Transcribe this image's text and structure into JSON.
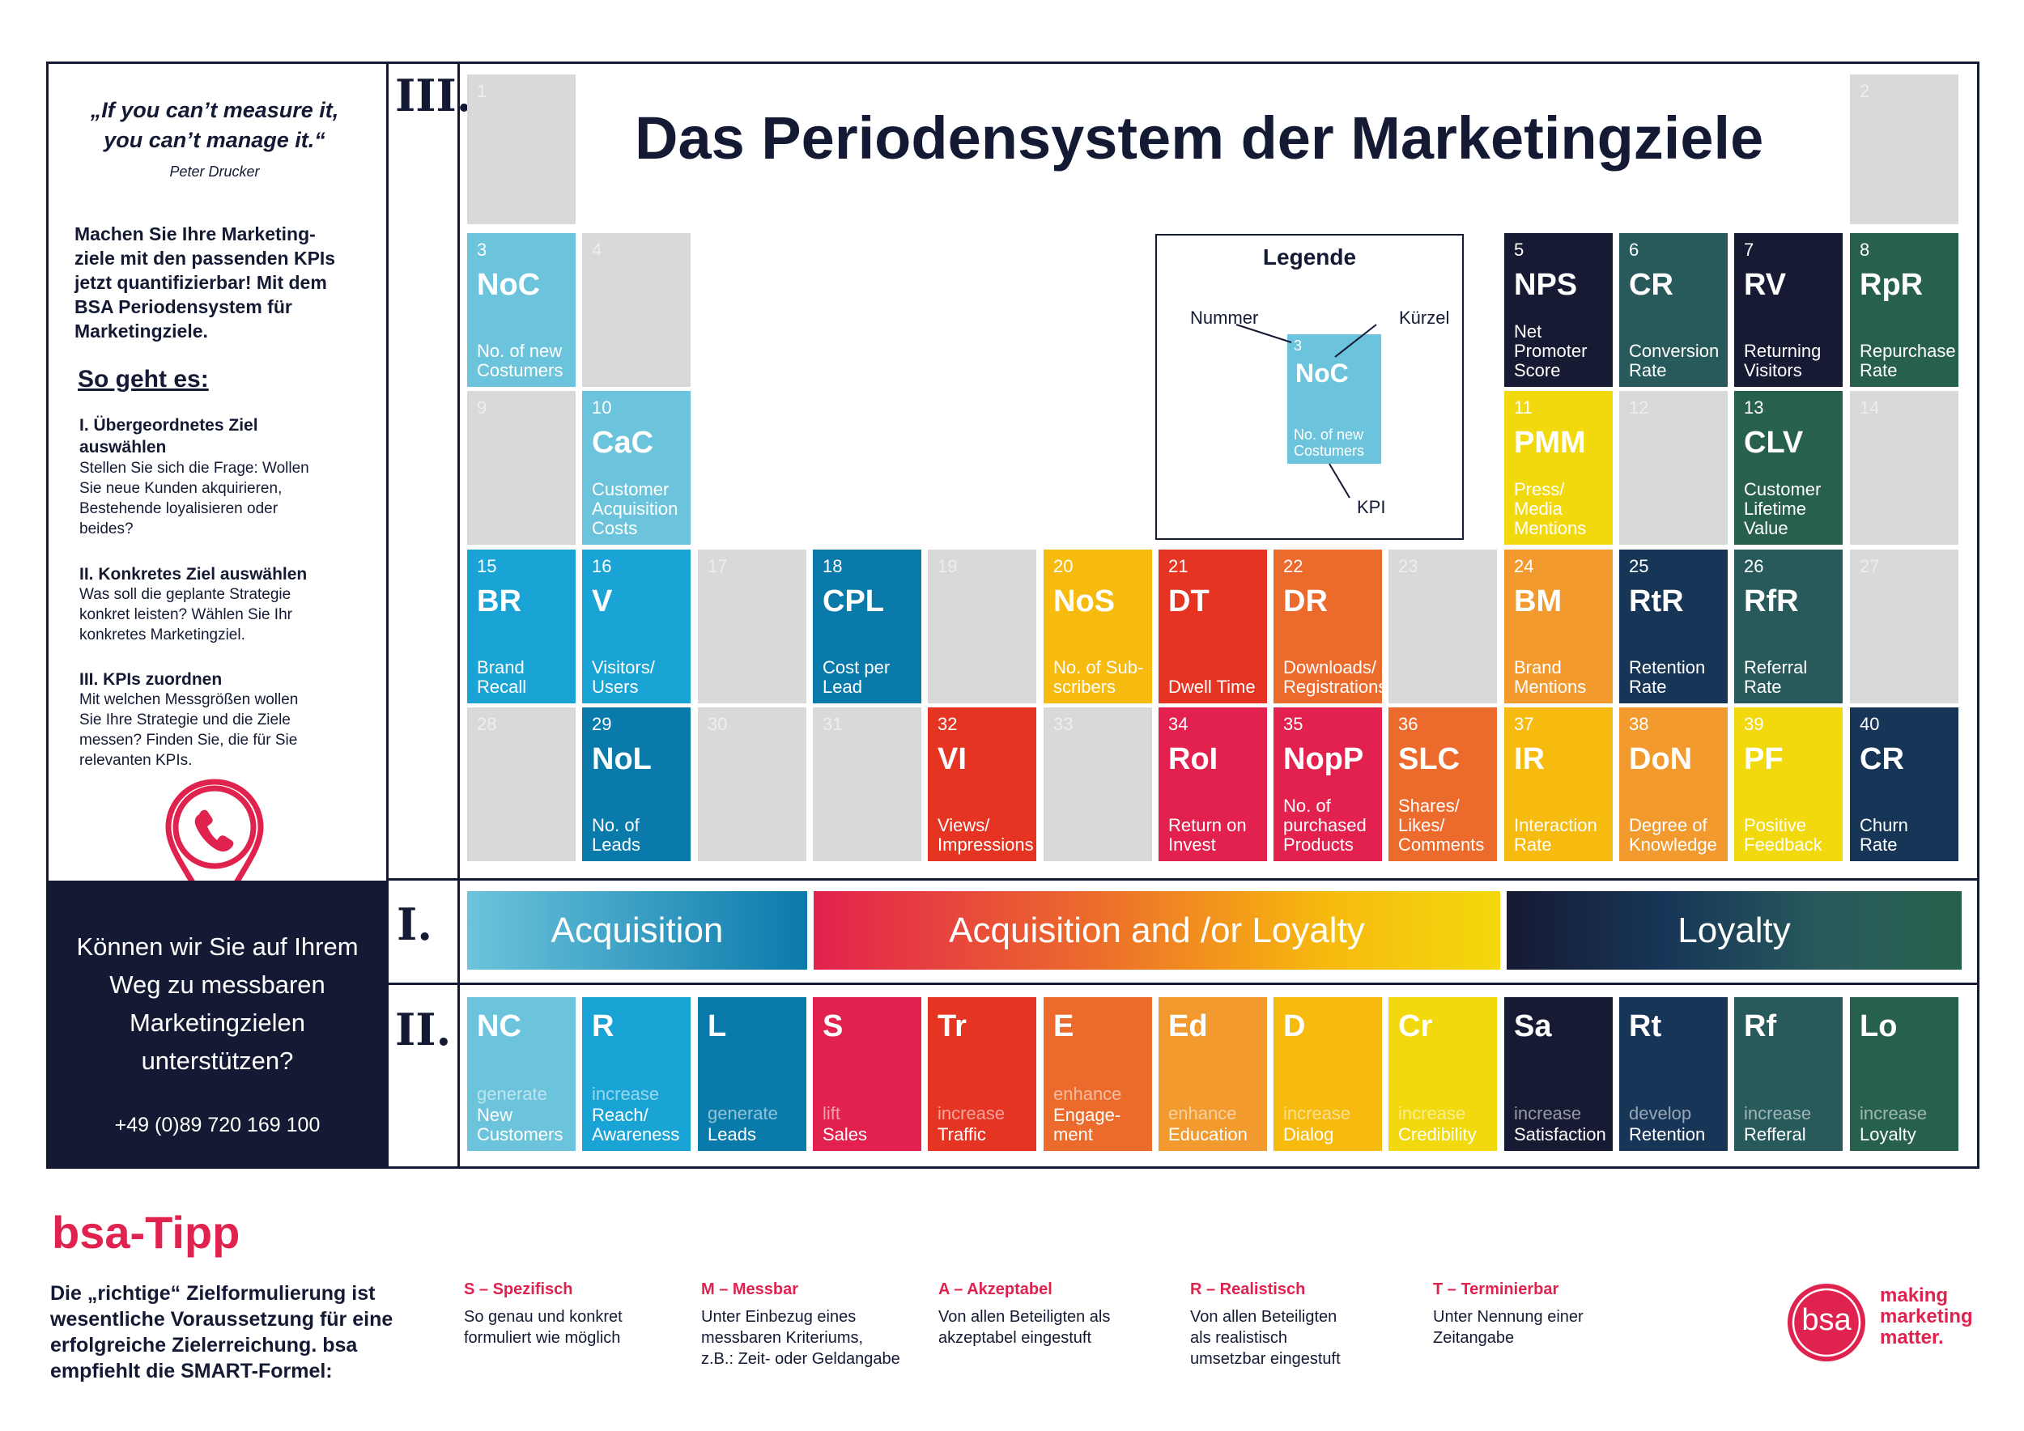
{
  "title": "Das Periodensystem der Marketingziele",
  "colors": {
    "dark": "#141a33",
    "accent": "#e0224f",
    "empty": "#d9d9da"
  },
  "sidebar": {
    "quote": "„If you can’t measure it, you can’t manage it.“",
    "quote_author": "Peter Drucker",
    "intro": "Machen Sie Ihre Marketing-ziele mit den passenden KPIs jetzt quantifizierbar! Mit dem BSA Periodensystem für Marketingziele.",
    "how_title": "So geht es:",
    "steps": [
      {
        "heading": "I. Übergeordnetes Ziel auswählen",
        "text": "Stellen Sie sich die Frage: Wollen Sie neue Kunden akquirieren, Bestehende loyalisieren oder beides?"
      },
      {
        "heading": "II. Konkretes Ziel auswählen",
        "text": "Was soll die geplante Strategie konkret leisten? Wählen Sie Ihr konkretes Marketingziel."
      },
      {
        "heading": "III. KPIs zuordnen",
        "text": "Mit welchen Messgrößen wollen Sie Ihre Strategie und die Ziele messen? Finden Sie, die für Sie relevanten KPIs."
      }
    ],
    "contact_question": "Können wir Sie auf Ihrem Weg zu messbaren Marketingzielen unterstützen?",
    "phone": "+49 (0)89 720 169 100",
    "pin_icon": "phone-location-pin-icon"
  },
  "section_labels": {
    "three": "III.",
    "one": "I.",
    "two": "II."
  },
  "legend": {
    "title": "Legende",
    "label_number": "Nummer",
    "label_symbol": "Kürzel",
    "label_kpi": "KPI",
    "sample": {
      "num": "3",
      "sym": "NoC",
      "kpi": "No. of new Costumers",
      "color": "#6cc4dc"
    }
  },
  "elements": [
    {
      "num": "1",
      "sym": "",
      "kpi": "",
      "color": "",
      "col": 0,
      "row": 0
    },
    {
      "num": "2",
      "sym": "",
      "kpi": "",
      "color": "",
      "col": 12,
      "row": 0
    },
    {
      "num": "3",
      "sym": "NoC",
      "kpi": "No. of new\nCostumers",
      "color": "#6cc4dc",
      "col": 0,
      "row": 1
    },
    {
      "num": "4",
      "sym": "",
      "kpi": "",
      "color": "",
      "col": 1,
      "row": 1
    },
    {
      "num": "5",
      "sym": "NPS",
      "kpi": "Net\nPromoter\nScore",
      "color": "#161a33",
      "col": 9,
      "row": 1
    },
    {
      "num": "6",
      "sym": "CR",
      "kpi": "Conversion\nRate",
      "color": "#285a5c",
      "col": 10,
      "row": 1
    },
    {
      "num": "7",
      "sym": "RV",
      "kpi": "Returning\nVisitors",
      "color": "#161a33",
      "col": 11,
      "row": 1
    },
    {
      "num": "8",
      "sym": "RpR",
      "kpi": "Repurchase\nRate",
      "color": "#27604b",
      "col": 12,
      "row": 1
    },
    {
      "num": "9",
      "sym": "",
      "kpi": "",
      "color": "",
      "col": 0,
      "row": 2
    },
    {
      "num": "10",
      "sym": "CaC",
      "kpi": "Customer\nAcquisition\nCosts",
      "color": "#6cc4dc",
      "col": 1,
      "row": 2
    },
    {
      "num": "11",
      "sym": "PMM",
      "kpi": "Press/\nMedia\nMentions",
      "color": "#f2d90d",
      "col": 9,
      "row": 2
    },
    {
      "num": "12",
      "sym": "",
      "kpi": "",
      "color": "",
      "col": 10,
      "row": 2
    },
    {
      "num": "13",
      "sym": "CLV",
      "kpi": "Customer\nLifetime\nValue",
      "color": "#27604b",
      "col": 11,
      "row": 2
    },
    {
      "num": "14",
      "sym": "",
      "kpi": "",
      "color": "",
      "col": 12,
      "row": 2
    },
    {
      "num": "15",
      "sym": "BR",
      "kpi": "Brand\nRecall",
      "color": "#1aa4d6",
      "col": 0,
      "row": 3
    },
    {
      "num": "16",
      "sym": "V",
      "kpi": "Visitors/\nUsers",
      "color": "#1aa4d6",
      "col": 1,
      "row": 3
    },
    {
      "num": "17",
      "sym": "",
      "kpi": "",
      "color": "",
      "col": 2,
      "row": 3
    },
    {
      "num": "18",
      "sym": "CPL",
      "kpi": "Cost per\nLead",
      "color": "#0a7aab",
      "col": 3,
      "row": 3
    },
    {
      "num": "19",
      "sym": "",
      "kpi": "",
      "color": "",
      "col": 4,
      "row": 3
    },
    {
      "num": "20",
      "sym": "NoS",
      "kpi": "No. of Sub-\nscribers",
      "color": "#f7ba0e",
      "col": 5,
      "row": 3
    },
    {
      "num": "21",
      "sym": "DT",
      "kpi": "Dwell Time",
      "color": "#e53422",
      "col": 6,
      "row": 3
    },
    {
      "num": "22",
      "sym": "DR",
      "kpi": "Downloads/\nRegistrations",
      "color": "#ec6a2c",
      "col": 7,
      "row": 3
    },
    {
      "num": "23",
      "sym": "",
      "kpi": "",
      "color": "",
      "col": 8,
      "row": 3
    },
    {
      "num": "24",
      "sym": "BM",
      "kpi": "Brand\nMentions",
      "color": "#f29a2e",
      "col": 9,
      "row": 3
    },
    {
      "num": "25",
      "sym": "RtR",
      "kpi": "Retention\nRate",
      "color": "#173657",
      "col": 10,
      "row": 3
    },
    {
      "num": "26",
      "sym": "RfR",
      "kpi": "Referral\nRate",
      "color": "#285a5c",
      "col": 11,
      "row": 3
    },
    {
      "num": "27",
      "sym": "",
      "kpi": "",
      "color": "",
      "col": 12,
      "row": 3
    },
    {
      "num": "28",
      "sym": "",
      "kpi": "",
      "color": "",
      "col": 0,
      "row": 4
    },
    {
      "num": "29",
      "sym": "NoL",
      "kpi": "No. of\nLeads",
      "color": "#0a7aab",
      "col": 1,
      "row": 4
    },
    {
      "num": "30",
      "sym": "",
      "kpi": "",
      "color": "",
      "col": 2,
      "row": 4
    },
    {
      "num": "31",
      "sym": "",
      "kpi": "",
      "color": "",
      "col": 3,
      "row": 4
    },
    {
      "num": "32",
      "sym": "VI",
      "kpi": "Views/\nImpressions",
      "color": "#e53422",
      "col": 4,
      "row": 4
    },
    {
      "num": "33",
      "sym": "",
      "kpi": "",
      "color": "",
      "col": 5,
      "row": 4
    },
    {
      "num": "34",
      "sym": "RoI",
      "kpi": "Return on\nInvest",
      "color": "#e2214e",
      "col": 6,
      "row": 4
    },
    {
      "num": "35",
      "sym": "NopP",
      "kpi": "No. of\npurchased\nProducts",
      "color": "#e2214e",
      "col": 7,
      "row": 4
    },
    {
      "num": "36",
      "sym": "SLC",
      "kpi": "Shares/\nLikes/\nComments",
      "color": "#ec6a2c",
      "col": 8,
      "row": 4
    },
    {
      "num": "37",
      "sym": "IR",
      "kpi": "Interaction\nRate",
      "color": "#f7ba0e",
      "col": 9,
      "row": 4
    },
    {
      "num": "38",
      "sym": "DoN",
      "kpi": "Degree of\nKnowledge",
      "color": "#f29a2e",
      "col": 10,
      "row": 4
    },
    {
      "num": "39",
      "sym": "PF",
      "kpi": "Positive\nFeedback",
      "color": "#f2d90d",
      "col": 11,
      "row": 4
    },
    {
      "num": "40",
      "sym": "CR",
      "kpi": "Churn\nRate",
      "color": "#173657",
      "col": 12,
      "row": 4
    }
  ],
  "categories": {
    "acquisition": "Acquisition",
    "both": "Acquisition and /or Loyalty",
    "loyalty": "Loyalty"
  },
  "goals": [
    {
      "sym": "NC",
      "verb": "generate",
      "obj": "New\nCustomers",
      "color": "#6cc4dc"
    },
    {
      "sym": "R",
      "verb": "increase",
      "obj": "Reach/\nAwareness",
      "color": "#1aa4d6"
    },
    {
      "sym": "L",
      "verb": "generate",
      "obj": "Leads",
      "color": "#0a7aab"
    },
    {
      "sym": "S",
      "verb": "lift",
      "obj": "Sales",
      "color": "#e2214e"
    },
    {
      "sym": "Tr",
      "verb": "increase",
      "obj": "Traffic",
      "color": "#e53422"
    },
    {
      "sym": "E",
      "verb": "enhance",
      "obj": "Engage-\nment",
      "color": "#ec6a2c"
    },
    {
      "sym": "Ed",
      "verb": "enhance",
      "obj": "Education",
      "color": "#f29a2e"
    },
    {
      "sym": "D",
      "verb": "increase",
      "obj": "Dialog",
      "color": "#f7ba0e"
    },
    {
      "sym": "Cr",
      "verb": "increase",
      "obj": "Credibility",
      "color": "#f2d90d"
    },
    {
      "sym": "Sa",
      "verb": "increase",
      "obj": "Satisfaction",
      "color": "#161a33"
    },
    {
      "sym": "Rt",
      "verb": "develop",
      "obj": "Retention",
      "color": "#173657"
    },
    {
      "sym": "Rf",
      "verb": "increase",
      "obj": "Refferal",
      "color": "#285a5c"
    },
    {
      "sym": "Lo",
      "verb": "increase",
      "obj": "Loyalty",
      "color": "#27604b"
    }
  ],
  "tip": {
    "title": "bsa-Tipp",
    "text": "Die „richtige“ Zielformulierung ist wesentliche Voraussetzung für eine erfolgreiche Zielerreichung. bsa empfiehlt die SMART-Formel:",
    "smart": [
      {
        "head": "S – Spezifisch",
        "text": "So genau und konkret\nformuliert wie möglich"
      },
      {
        "head": "M – Messbar",
        "text": "Unter Einbezug eines\nmessbaren Kriteriums,\nz.B.: Zeit- oder Geldangabe"
      },
      {
        "head": "A – Akzeptabel",
        "text": "Von allen Beteiligten als\nakzeptabel eingestuft"
      },
      {
        "head": "R – Realistisch",
        "text": "Von allen Beteiligten\nals realistisch\numsetzbar eingestuft"
      },
      {
        "head": "T – Terminierbar",
        "text": "Unter Nennung einer\nZeitangabe"
      }
    ]
  },
  "logo": {
    "mark": "bsa",
    "tagline": "making\nmarketing\nmatter."
  }
}
